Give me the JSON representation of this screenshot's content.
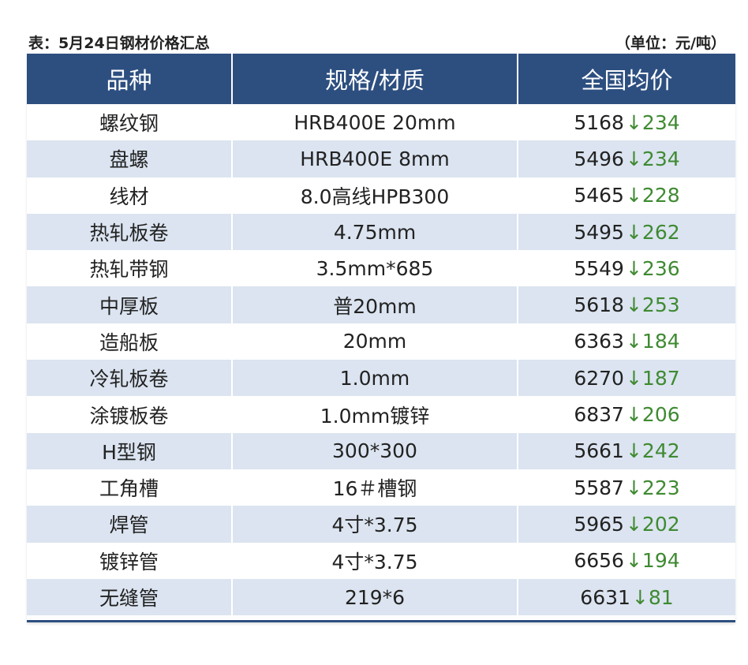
{
  "caption": {
    "title": "表：5月24日钢材价格汇总",
    "unit": "（单位：元/吨）"
  },
  "colors": {
    "header_bg": "#2d4f80",
    "stripe_bg": "#dbe4f0",
    "decrease": "#3f8a32"
  },
  "table": {
    "headers": [
      "品种",
      "规格/材质",
      "全国均价"
    ],
    "rows": [
      {
        "name": "螺纹钢",
        "spec": "HRB400E 20mm",
        "price": "5168",
        "arrow": "↓",
        "change": "234"
      },
      {
        "name": "盘螺",
        "spec": "HRB400E 8mm",
        "price": "5496",
        "arrow": "↓",
        "change": "234"
      },
      {
        "name": "线材",
        "spec": "8.0高线HPB300",
        "price": "5465",
        "arrow": "↓",
        "change": "228"
      },
      {
        "name": "热轧板卷",
        "spec": "4.75mm",
        "price": "5495",
        "arrow": "↓",
        "change": "262"
      },
      {
        "name": "热轧带钢",
        "spec": "3.5mm*685",
        "price": "5549",
        "arrow": "↓",
        "change": "236"
      },
      {
        "name": "中厚板",
        "spec": "普20mm",
        "price": "5618",
        "arrow": "↓",
        "change": "253"
      },
      {
        "name": "造船板",
        "spec": "20mm",
        "price": "6363",
        "arrow": "↓",
        "change": "184"
      },
      {
        "name": "冷轧板卷",
        "spec": "1.0mm",
        "price": "6270",
        "arrow": "↓",
        "change": "187"
      },
      {
        "name": "涂镀板卷",
        "spec": "1.0mm镀锌",
        "price": "6837",
        "arrow": "↓",
        "change": "206"
      },
      {
        "name": "H型钢",
        "spec": "300*300",
        "price": "5661",
        "arrow": "↓",
        "change": "242"
      },
      {
        "name": "工角槽",
        "spec": "16＃槽钢",
        "price": "5587",
        "arrow": "↓",
        "change": "223"
      },
      {
        "name": "焊管",
        "spec": "4寸*3.75",
        "price": "5965",
        "arrow": "↓",
        "change": "202"
      },
      {
        "name": "镀锌管",
        "spec": "4寸*3.75",
        "price": "6656",
        "arrow": "↓",
        "change": "194"
      },
      {
        "name": "无缝管",
        "spec": "219*6",
        "price": "6631",
        "arrow": "↓",
        "change": "81"
      }
    ]
  }
}
